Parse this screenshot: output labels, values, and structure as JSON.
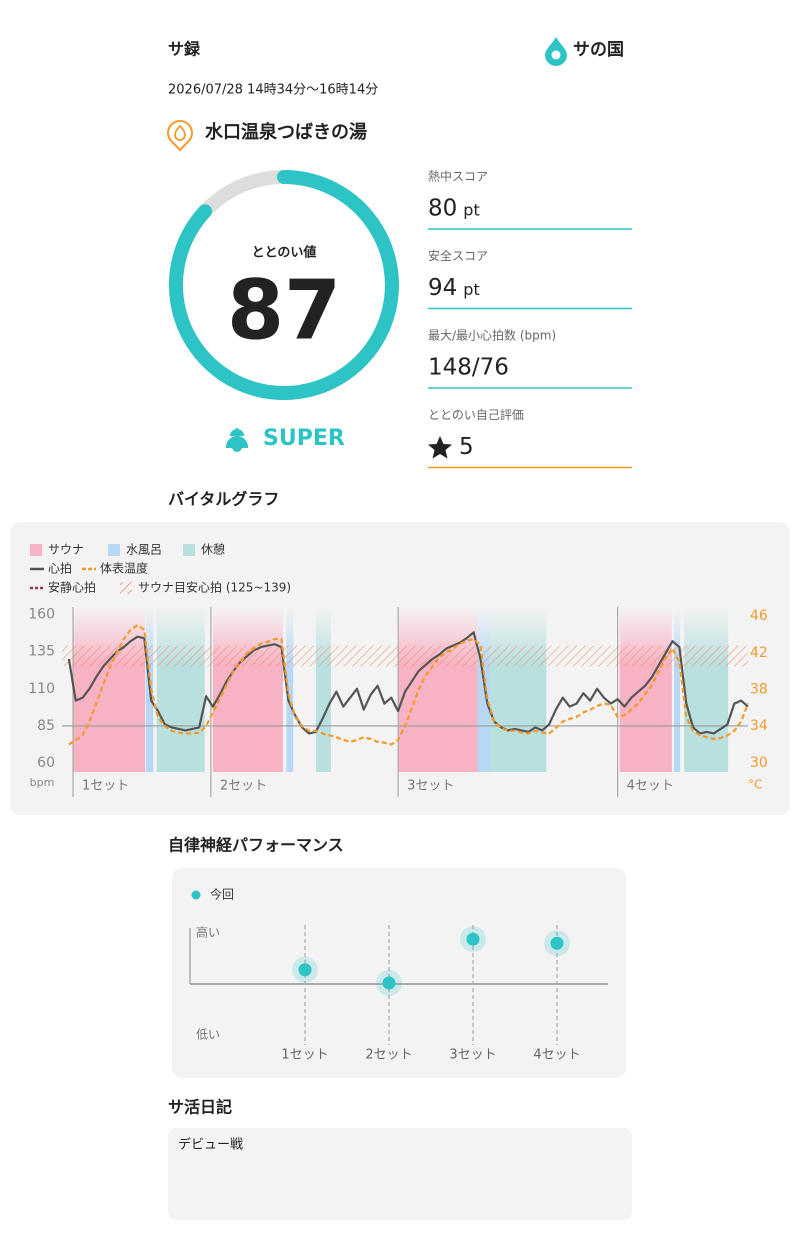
{
  "header": {
    "title": "サ録",
    "brand": "サの国",
    "datetime": "2026/07/28 14時34分〜16時14分"
  },
  "facility": "水口温泉つばきの湯",
  "totonoi": {
    "label": "ととのい値",
    "value": 87,
    "rank": "SUPER"
  },
  "stats": [
    {
      "label": "熱中スコア",
      "value": 80,
      "unit": "pt"
    },
    {
      "label": "安全スコア",
      "value": 94,
      "unit": "pt"
    },
    {
      "label": "最大/最小心拍数 (bpm)",
      "value": "148/76"
    },
    {
      "label": "ととのい自己評価",
      "value": 5
    }
  ],
  "sections": {
    "vital": "バイタルグラフ",
    "autonomic": "自律神経パフォーマンス",
    "diary": "サ活日記"
  },
  "diary": "デビュー戦",
  "chart_data": [
    {
      "type": "line",
      "ylabel": "bpm",
      "y2label": "°C",
      "xlim": [
        0,
        100
      ],
      "ylim": [
        54,
        165
      ],
      "yticks": [
        60,
        85,
        110,
        135,
        160
      ],
      "y2lim": [
        29,
        47
      ],
      "y2ticks": [
        30,
        34,
        38,
        42,
        46
      ],
      "areas": [
        {
          "name": "サウナ",
          "color": "#f7b3c4",
          "spans": [
            [
              1.6,
              12.1
            ],
            [
              22,
              32.2
            ],
            [
              49,
              60.6
            ],
            [
              81.3,
              88.9
            ]
          ]
        },
        {
          "name": "水風呂",
          "color": "#b7d8f5",
          "spans": [
            [
              12.2,
              13.3
            ],
            [
              32.7,
              33.7
            ],
            [
              60.6,
              62.4
            ],
            [
              89.2,
              90.1
            ]
          ]
        },
        {
          "name": "休憩",
          "color": "#b8e0df",
          "spans": [
            [
              13.8,
              20.8
            ],
            [
              37,
              39.2
            ],
            [
              62.4,
              70.6
            ],
            [
              90.7,
              97.1
            ]
          ]
        }
      ],
      "sets": [
        {
          "label": "1セット",
          "x": 1.6
        },
        {
          "label": "2セット",
          "x": 21.7
        },
        {
          "label": "3セット",
          "x": 49
        },
        {
          "label": "4セット",
          "x": 81
        }
      ],
      "x": [
        1,
        2,
        3,
        4,
        5,
        6,
        7,
        8,
        9,
        10,
        11,
        12,
        13,
        14,
        15,
        16,
        17,
        18,
        19,
        20,
        21,
        22,
        23,
        24,
        25,
        26,
        27,
        28,
        29,
        30,
        31,
        32,
        33,
        34,
        35,
        36,
        37,
        38,
        39,
        40,
        41,
        42,
        43,
        44,
        45,
        46,
        47,
        48,
        49,
        50,
        51,
        52,
        53,
        54,
        55,
        56,
        57,
        58,
        59,
        60,
        61,
        62,
        63,
        64,
        65,
        66,
        67,
        68,
        69,
        70,
        71,
        72,
        73,
        74,
        75,
        76,
        77,
        78,
        79,
        80,
        81,
        82,
        83,
        84,
        85,
        86,
        87,
        88,
        89,
        90,
        91,
        92,
        93,
        94,
        95,
        96,
        97,
        98,
        99,
        100
      ],
      "series": [
        {
          "name": "心拍",
          "color": "#555555",
          "values": [
            130,
            102,
            104,
            110,
            118,
            125,
            130,
            135,
            138,
            142,
            145,
            144,
            102,
            95,
            86,
            84,
            83,
            82,
            83,
            84,
            105,
            98,
            106,
            115,
            122,
            128,
            132,
            136,
            138,
            139,
            140,
            138,
            102,
            92,
            84,
            80,
            81,
            90,
            100,
            108,
            98,
            104,
            110,
            96,
            106,
            112,
            100,
            104,
            95,
            108,
            115,
            122,
            126,
            130,
            133,
            137,
            139,
            141,
            144,
            148,
            130,
            100,
            88,
            84,
            82,
            83,
            82,
            81,
            84,
            82,
            86,
            96,
            104,
            98,
            100,
            107,
            102,
            110,
            104,
            100,
            103,
            98,
            104,
            108,
            112,
            118,
            126,
            134,
            142,
            138,
            100,
            84,
            80,
            81,
            80,
            83,
            86,
            100,
            102,
            98
          ]
        },
        {
          "name": "体表温度",
          "color": "#f39a2b",
          "axis": "y2",
          "values": [
            32,
            32.5,
            33,
            34.5,
            36.5,
            38.5,
            40.5,
            42,
            43.5,
            44.5,
            45,
            44.5,
            38,
            35,
            34,
            33.5,
            33.3,
            33.2,
            33.2,
            33.3,
            34,
            35.5,
            37,
            38.5,
            40,
            41,
            42,
            42.5,
            43,
            43.2,
            43.5,
            43.5,
            37.5,
            35,
            34,
            33.5,
            33.5,
            33.2,
            33,
            32.8,
            32.5,
            32.3,
            32.5,
            32.8,
            32.6,
            32.3,
            32.2,
            32,
            32.5,
            34,
            36,
            38,
            39.5,
            40.5,
            41.5,
            42,
            42.5,
            43,
            43.3,
            43.5,
            42.8,
            37,
            34.5,
            33.8,
            33.5,
            33.5,
            33.3,
            33.2,
            33.5,
            33.3,
            33.2,
            33.8,
            34.5,
            34.8,
            35,
            35.5,
            35.8,
            36.2,
            36.5,
            36.3,
            35,
            35.2,
            35.8,
            36.5,
            37.5,
            38.5,
            40,
            41.5,
            42.5,
            41,
            35,
            33.5,
            33,
            32.8,
            32.6,
            32.7,
            33,
            33.5,
            34.5,
            36.5
          ]
        }
      ],
      "resting": {
        "name": "安静心拍",
        "value": 85,
        "color": "#a8324a"
      },
      "band": {
        "name": "サウナ目安心拍 (125~139)",
        "range": [
          125,
          139
        ],
        "color": "#f08a6a"
      }
    },
    {
      "type": "dot",
      "legend": "今回",
      "color": "#2ec4c6",
      "categories": [
        "1セット",
        "2セット",
        "3セット",
        "4セット"
      ],
      "values": [
        0.28,
        0.02,
        0.88,
        0.8
      ],
      "ylim": [
        -1.1,
        1.1
      ],
      "yticks": [
        {
          "value": 1,
          "label": "高い"
        },
        {
          "value": -1,
          "label": "低い"
        }
      ]
    }
  ]
}
